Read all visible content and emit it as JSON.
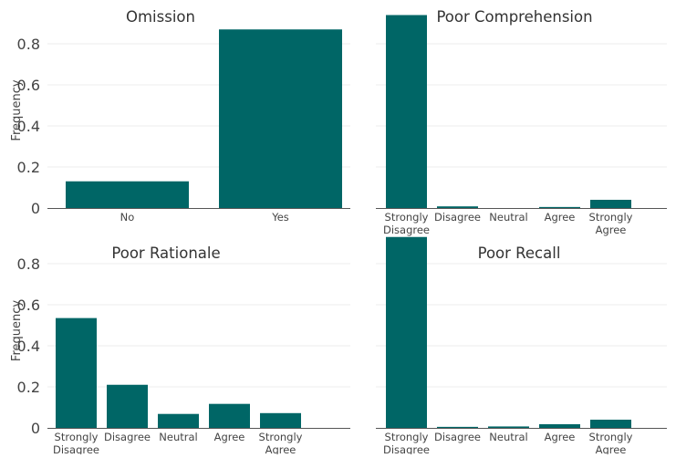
{
  "chart_data": [
    {
      "type": "bar",
      "title": "Omission",
      "ylabel": "Frequency",
      "categories": [
        [
          "No"
        ],
        [
          "Yes"
        ]
      ],
      "values": [
        0.13,
        0.87
      ],
      "ylim": [
        0,
        0.95
      ],
      "yticks": [
        "0",
        "0.2",
        "0.4",
        "0.6",
        "0.8"
      ],
      "grid": true,
      "color": "#006666"
    },
    {
      "type": "bar",
      "title": "Poor Comprehension",
      "ylabel": "",
      "categories": [
        [
          "Strongly",
          "Disagree"
        ],
        [
          "Disagree"
        ],
        [
          "Neutral"
        ],
        [
          "Agree"
        ],
        [
          "Strongly",
          "Agree"
        ]
      ],
      "values": [
        0.94,
        0.008,
        0.0,
        0.005,
        0.04
      ],
      "ylim": [
        0,
        0.95
      ],
      "yticks": [],
      "grid": true,
      "color": "#006666"
    },
    {
      "type": "bar",
      "title": "Poor Rationale",
      "ylabel": "Frequency",
      "categories": [
        [
          "Strongly",
          "Disagree"
        ],
        [
          "Disagree"
        ],
        [
          "Neutral"
        ],
        [
          "Agree"
        ],
        [
          "Strongly",
          "Agree"
        ]
      ],
      "values": [
        0.535,
        0.21,
        0.068,
        0.117,
        0.072
      ],
      "ylim": [
        0,
        0.95
      ],
      "yticks": [
        "0",
        "0.2",
        "0.4",
        "0.6",
        "0.8"
      ],
      "grid": true,
      "color": "#006666"
    },
    {
      "type": "bar",
      "title": "Poor Recall",
      "ylabel": "",
      "categories": [
        [
          "Strongly",
          "Disagree"
        ],
        [
          "Disagree"
        ],
        [
          "Neutral"
        ],
        [
          "Agree"
        ],
        [
          "Strongly",
          "Agree"
        ]
      ],
      "values": [
        0.93,
        0.005,
        0.007,
        0.018,
        0.04
      ],
      "ylim": [
        0,
        0.95
      ],
      "yticks": [],
      "grid": true,
      "color": "#006666"
    }
  ]
}
